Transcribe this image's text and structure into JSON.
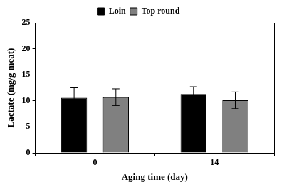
{
  "chart_data": {
    "type": "bar",
    "x_label": "Aging time (day)",
    "y_label": "Lactate (mg/g meat)",
    "categories": [
      "0",
      "14"
    ],
    "series": [
      {
        "name": "Loin",
        "color": "#000000",
        "values": [
          10.6,
          11.3
        ],
        "error": [
          1.9,
          1.4
        ]
      },
      {
        "name": "Top round",
        "color": "#808080",
        "values": [
          10.7,
          10.1
        ],
        "error": [
          1.6,
          1.6
        ]
      }
    ],
    "ylim": [
      0,
      25
    ],
    "yticks": [
      0,
      5,
      10,
      15,
      20,
      25
    ],
    "grid": false,
    "legend": "top"
  }
}
